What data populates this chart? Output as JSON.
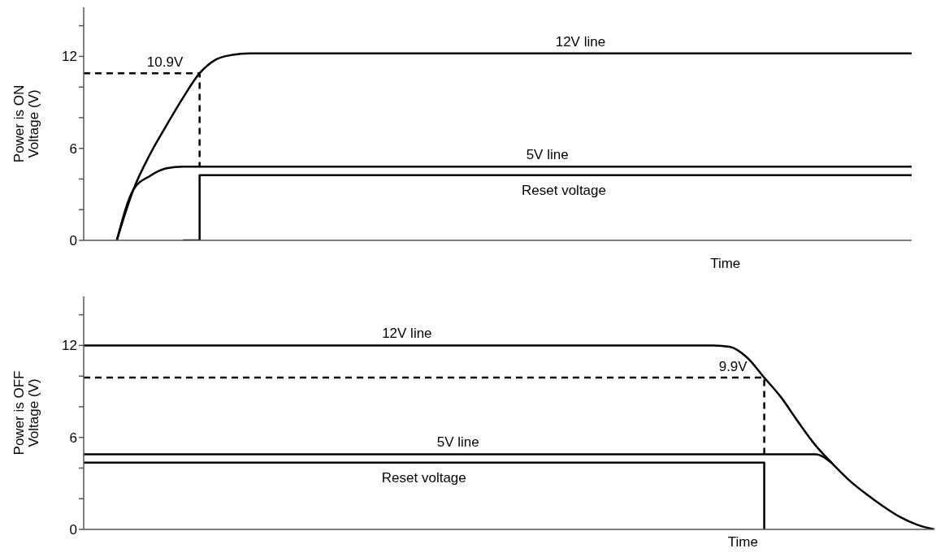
{
  "chart_data": [
    {
      "type": "line",
      "xlabel": "Time",
      "ylabel": "Power is ON\nVoltage  (V)",
      "marker": "none",
      "tick_labels": "y",
      "ylim": [
        0,
        15.2
      ],
      "yticks": [
        0,
        {
          "value": 2,
          "label": null
        },
        {
          "value": 4,
          "label": null
        },
        6,
        {
          "value": 8,
          "label": null
        },
        {
          "value": 10,
          "label": null
        },
        12,
        {
          "value": 14,
          "label": null
        }
      ],
      "categories": [
        null,
        null,
        null,
        null,
        null,
        null,
        null,
        null,
        null,
        null,
        null,
        null,
        null,
        null,
        null,
        null,
        null,
        null,
        null,
        null,
        null,
        null,
        null,
        null,
        null,
        null,
        null,
        null,
        null,
        null,
        null,
        null,
        null,
        null,
        null,
        null,
        null,
        null,
        null,
        null,
        null,
        null,
        null,
        null,
        null,
        null,
        null,
        null,
        null,
        null,
        null
      ],
      "annotations": [
        "10.9V"
      ],
      "series": [
        {
          "name": "12V line",
          "color": "#000000",
          "values": [
            null,
            null,
            0,
            3.3,
            5.6,
            7.5,
            9.3,
            10.9,
            11.8,
            12.1,
            12.2,
            12.2,
            12.2,
            12.2,
            12.2,
            12.2,
            12.2,
            12.2,
            12.2,
            12.2,
            12.2,
            12.2,
            12.2,
            12.2,
            12.2,
            12.2,
            12.2,
            12.2,
            12.2,
            12.2,
            12.2,
            12.2,
            12.2,
            12.2,
            12.2,
            12.2,
            12.2,
            12.2,
            12.2,
            12.2,
            12.2,
            12.2,
            12.2,
            12.2,
            12.2,
            12.2,
            12.2,
            12.2,
            12.2,
            12.2,
            12.2
          ]
        },
        {
          "name": "5V line",
          "color": "#000000",
          "values": [
            null,
            null,
            0,
            3.3,
            4.2,
            4.7,
            4.8,
            4.8,
            4.8,
            4.8,
            4.8,
            4.8,
            4.8,
            4.8,
            4.8,
            4.8,
            4.8,
            4.8,
            4.8,
            4.8,
            4.8,
            4.8,
            4.8,
            4.8,
            4.8,
            4.8,
            4.8,
            4.8,
            4.8,
            4.8,
            4.8,
            4.8,
            4.8,
            4.8,
            4.8,
            4.8,
            4.8,
            4.8,
            4.8,
            4.8,
            4.8,
            4.8,
            4.8,
            4.8,
            4.8,
            4.8,
            4.8,
            4.8,
            4.8,
            4.8,
            4.8
          ]
        },
        {
          "name": "Reset voltage",
          "type": "step",
          "color": "#000000",
          "values": [
            null,
            null,
            null,
            null,
            null,
            null,
            0,
            4.25,
            4.25,
            4.25,
            4.25,
            4.25,
            4.25,
            4.25,
            4.25,
            4.25,
            4.25,
            4.25,
            4.25,
            4.25,
            4.25,
            4.25,
            4.25,
            4.25,
            4.25,
            4.25,
            4.25,
            4.25,
            4.25,
            4.25,
            4.25,
            4.25,
            4.25,
            4.25,
            4.25,
            4.25,
            4.25,
            4.25,
            4.25,
            4.25,
            4.25,
            4.25,
            4.25,
            4.25,
            4.25,
            4.25,
            4.25,
            4.25,
            4.25,
            4.25,
            4.25
          ]
        },
        {
          "type": "step",
          "line_style": "dashed",
          "color": "#000000",
          "values": [
            10.9,
            10.9,
            10.9,
            10.9,
            10.9,
            10.9,
            10.9,
            4.8,
            null,
            null,
            null,
            null,
            null,
            null,
            null,
            null,
            null,
            null,
            null,
            null,
            null,
            null,
            null,
            null,
            null,
            null,
            null,
            null,
            null,
            null,
            null,
            null,
            null,
            null,
            null,
            null,
            null,
            null,
            null,
            null,
            null,
            null,
            null,
            null,
            null,
            null,
            null,
            null,
            null,
            null,
            null
          ]
        }
      ]
    },
    {
      "type": "line",
      "xlabel": "Time",
      "ylabel": "Power is OFF\nVoltage  (V)",
      "marker": "none",
      "tick_labels": "y",
      "ylim": [
        0,
        15.2
      ],
      "yticks": [
        0,
        {
          "value": 2,
          "label": null
        },
        {
          "value": 4,
          "label": null
        },
        6,
        {
          "value": 8,
          "label": null
        },
        {
          "value": 10,
          "label": null
        },
        12,
        {
          "value": 14,
          "label": null
        }
      ],
      "categories": [
        null,
        null,
        null,
        null,
        null,
        null,
        null,
        null,
        null,
        null,
        null,
        null,
        null,
        null,
        null,
        null,
        null,
        null,
        null,
        null,
        null,
        null,
        null,
        null,
        null,
        null,
        null,
        null,
        null,
        null,
        null,
        null,
        null,
        null,
        null,
        null,
        null,
        null,
        null,
        null,
        null,
        null,
        null,
        null,
        null,
        null,
        null,
        null,
        null,
        null,
        null
      ],
      "annotations": [
        "9.9V"
      ],
      "series": [
        {
          "name": "12V line",
          "color": "#000000",
          "values": [
            12,
            12,
            12,
            12,
            12,
            12,
            12,
            12,
            12,
            12,
            12,
            12,
            12,
            12,
            12,
            12,
            12,
            12,
            12,
            12,
            12,
            12,
            12,
            12,
            12,
            12,
            12,
            12,
            12,
            12,
            12,
            12,
            12,
            12,
            12,
            12,
            12,
            12,
            11.9,
            11.2,
            9.9,
            8.6,
            7.0,
            5.5,
            4.3,
            3.2,
            2.3,
            1.5,
            0.8,
            0.3,
            0
          ]
        },
        {
          "name": "5V line",
          "color": "#000000",
          "values": [
            4.9,
            4.9,
            4.9,
            4.9,
            4.9,
            4.9,
            4.9,
            4.9,
            4.9,
            4.9,
            4.9,
            4.9,
            4.9,
            4.9,
            4.9,
            4.9,
            4.9,
            4.9,
            4.9,
            4.9,
            4.9,
            4.9,
            4.9,
            4.9,
            4.9,
            4.9,
            4.9,
            4.9,
            4.9,
            4.9,
            4.9,
            4.9,
            4.9,
            4.9,
            4.9,
            4.9,
            4.9,
            4.9,
            4.9,
            4.9,
            4.9,
            4.9,
            4.9,
            4.9,
            4.3,
            null,
            null,
            null,
            null,
            null,
            null
          ]
        },
        {
          "name": "Reset voltage",
          "type": "step",
          "color": "#000000",
          "values": [
            4.35,
            4.35,
            4.35,
            4.35,
            4.35,
            4.35,
            4.35,
            4.35,
            4.35,
            4.35,
            4.35,
            4.35,
            4.35,
            4.35,
            4.35,
            4.35,
            4.35,
            4.35,
            4.35,
            4.35,
            4.35,
            4.35,
            4.35,
            4.35,
            4.35,
            4.35,
            4.35,
            4.35,
            4.35,
            4.35,
            4.35,
            4.35,
            4.35,
            4.35,
            4.35,
            4.35,
            4.35,
            4.35,
            4.35,
            4.35,
            0,
            null,
            null,
            null,
            null,
            null,
            null,
            null,
            null,
            null,
            null
          ]
        },
        {
          "type": "step",
          "line_style": "dashed",
          "color": "#000000",
          "values": [
            9.9,
            9.9,
            9.9,
            9.9,
            9.9,
            9.9,
            9.9,
            9.9,
            9.9,
            9.9,
            9.9,
            9.9,
            9.9,
            9.9,
            9.9,
            9.9,
            9.9,
            9.9,
            9.9,
            9.9,
            9.9,
            9.9,
            9.9,
            9.9,
            9.9,
            9.9,
            9.9,
            9.9,
            9.9,
            9.9,
            9.9,
            9.9,
            9.9,
            9.9,
            9.9,
            9.9,
            9.9,
            9.9,
            9.9,
            9.9,
            4.9,
            null,
            null,
            null,
            null,
            null,
            null,
            null,
            null,
            null,
            null
          ]
        }
      ]
    }
  ]
}
